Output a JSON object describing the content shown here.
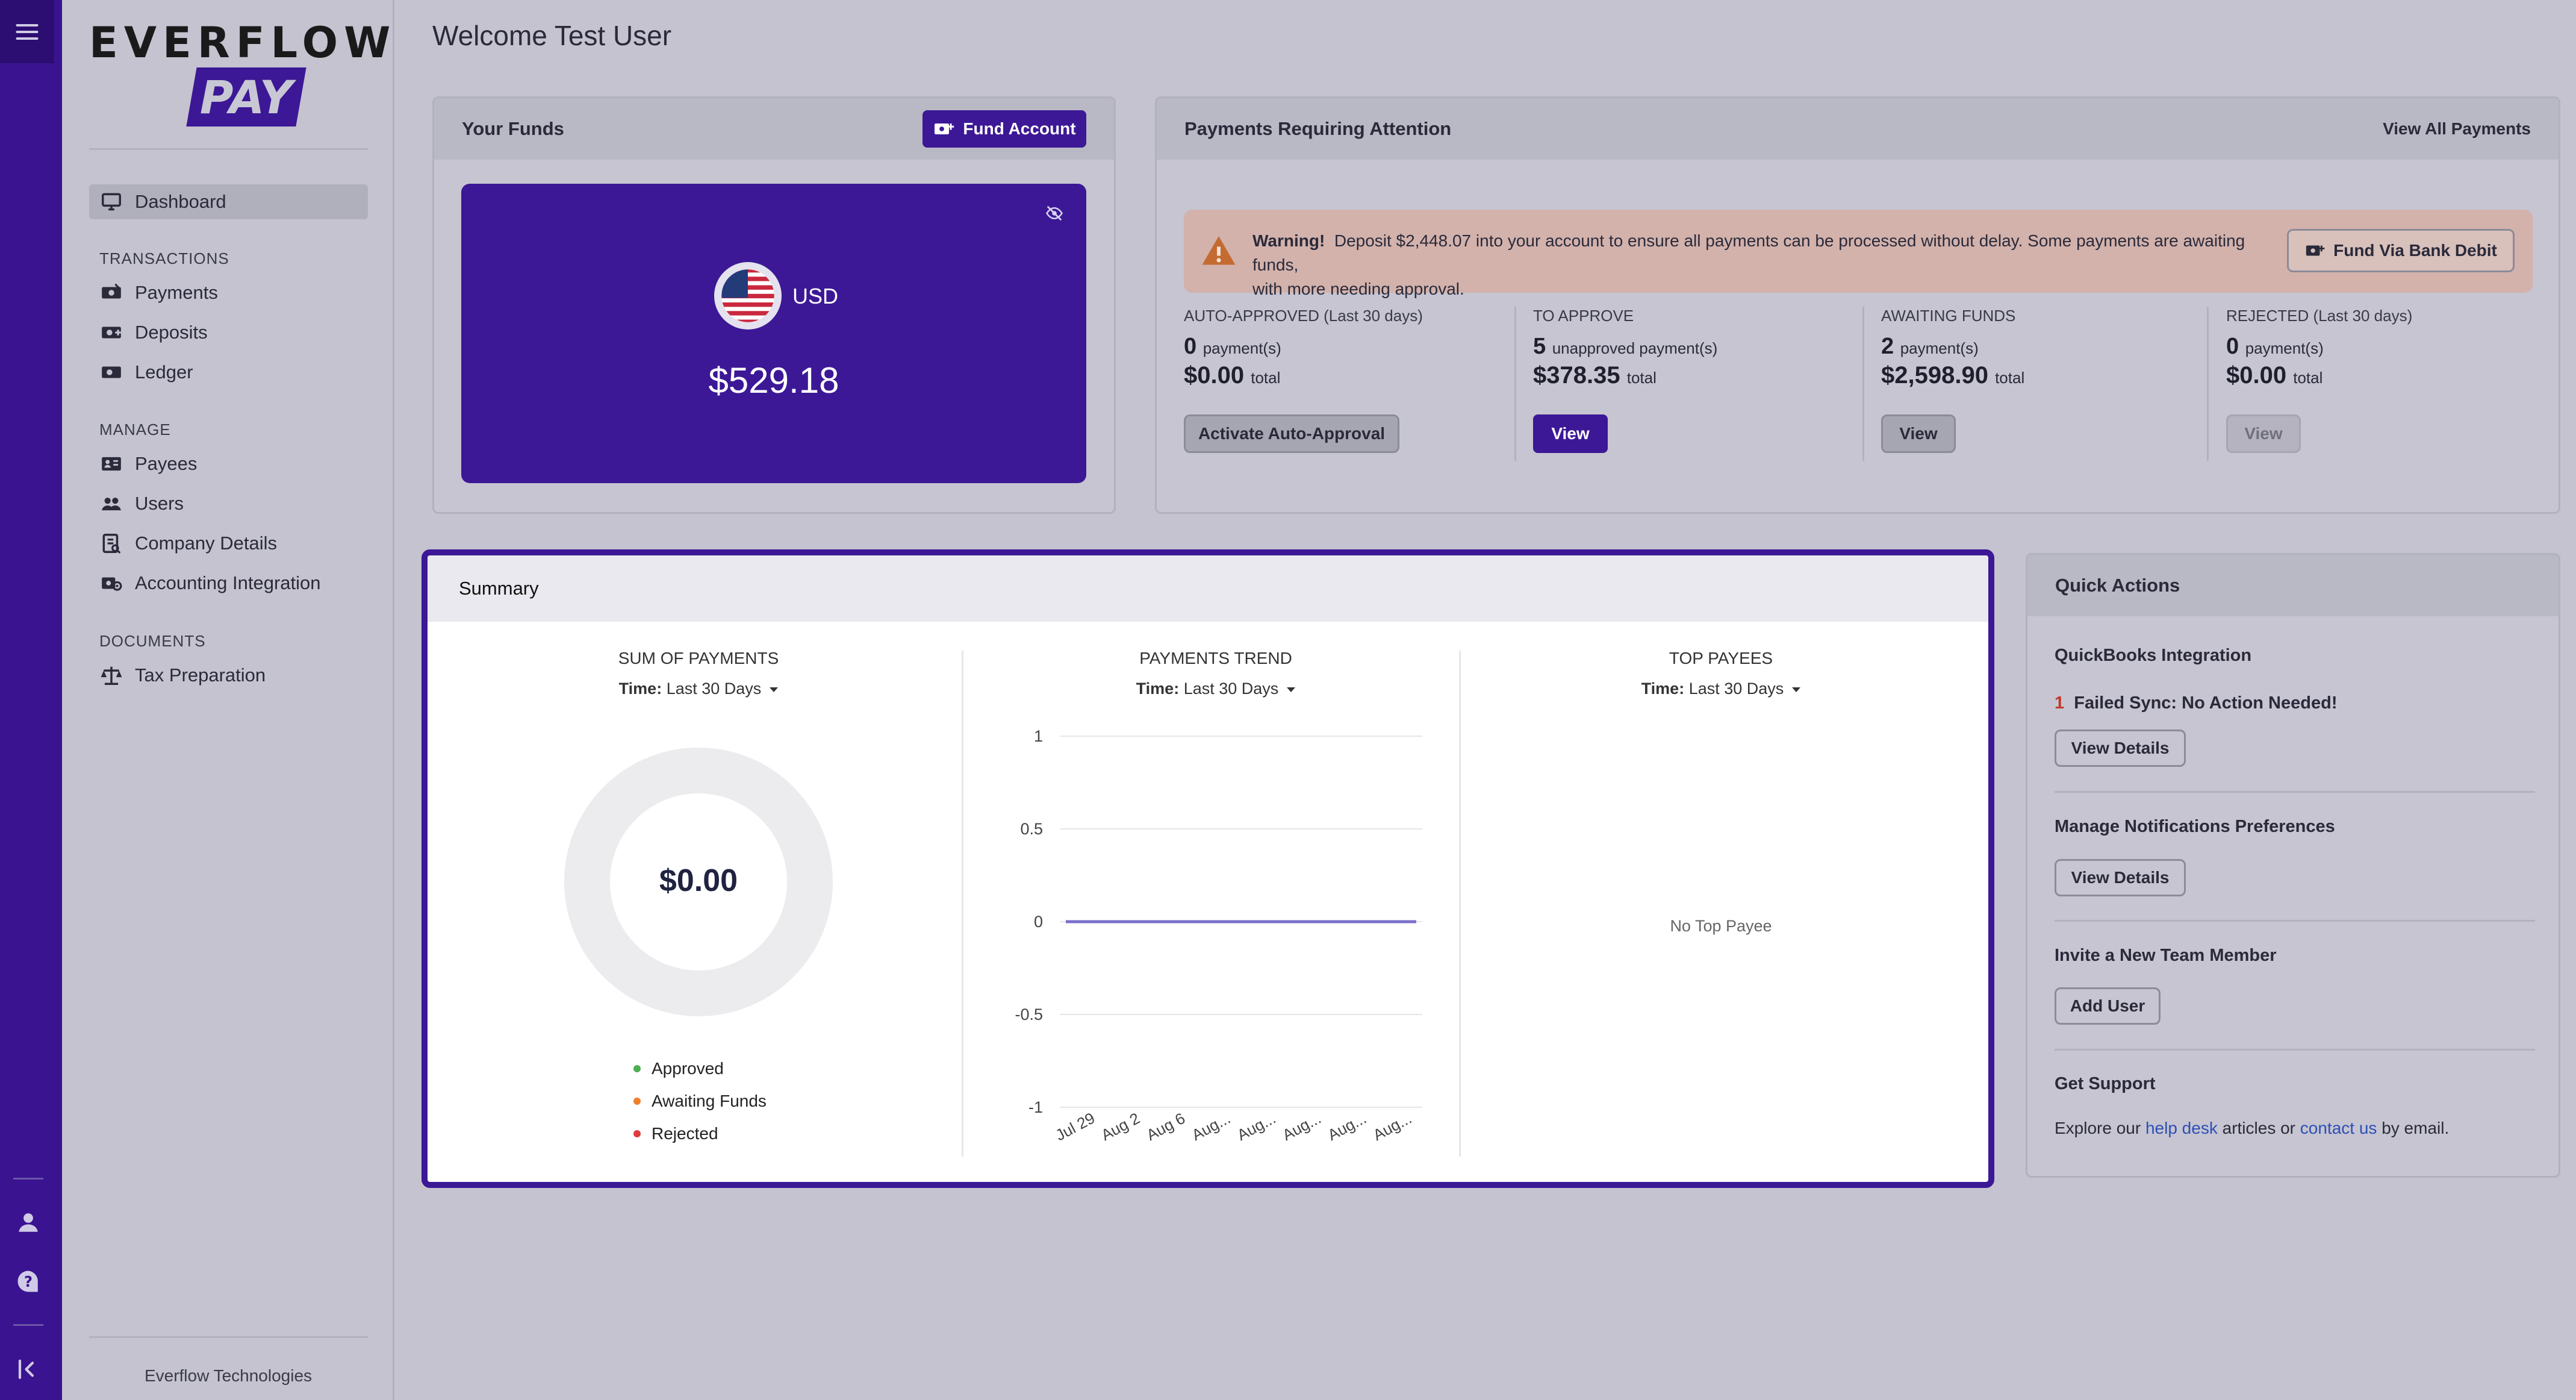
{
  "rail": {
    "menu_icon": "hamburger-icon",
    "icons": [
      "user-icon",
      "help-icon",
      "collapse-icon"
    ]
  },
  "sidebar": {
    "logo_word": "EVERFLOW",
    "logo_pay": "PAY",
    "dashboard": "Dashboard",
    "groups": {
      "transactions": "TRANSACTIONS",
      "manage": "MANAGE",
      "documents": "DOCUMENTS"
    },
    "items": {
      "payments": "Payments",
      "deposits": "Deposits",
      "ledger": "Ledger",
      "payees": "Payees",
      "users": "Users",
      "company_details": "Company Details",
      "accounting_integration": "Accounting Integration",
      "tax_preparation": "Tax Preparation"
    },
    "footer": "Everflow Technologies"
  },
  "header": {
    "title": "Welcome Test User"
  },
  "funds": {
    "title": "Your Funds",
    "fund_button": "Fund Account",
    "currency": "USD",
    "balance": "$529.18"
  },
  "attention": {
    "title": "Payments Requiring Attention",
    "view_all": "View All Payments",
    "warning_label": "Warning!",
    "warning_text_1": "Deposit $2,448.07 into your account to ensure all payments can be processed without delay. Some payments are awaiting funds,",
    "warning_text_2": "with more needing approval.",
    "bank_button": "Fund Via Bank Debit",
    "stats": [
      {
        "label": "AUTO-APPROVED",
        "sublabel": "(Last 30 days)",
        "count": "0",
        "count_unit": "payment(s)",
        "total": "$0.00",
        "total_unit": "total",
        "button": "Activate Auto-Approval"
      },
      {
        "label": "TO APPROVE",
        "sublabel": "",
        "count": "5",
        "count_unit": "unapproved payment(s)",
        "total": "$378.35",
        "total_unit": "total",
        "button": "View"
      },
      {
        "label": "AWAITING FUNDS",
        "sublabel": "",
        "count": "2",
        "count_unit": "payment(s)",
        "total": "$2,598.90",
        "total_unit": "total",
        "button": "View"
      },
      {
        "label": "REJECTED",
        "sublabel": "(Last 30 days)",
        "count": "0",
        "count_unit": "payment(s)",
        "total": "$0.00",
        "total_unit": "total",
        "button": "View"
      }
    ]
  },
  "summary": {
    "title": "Summary",
    "time_label": "Time:",
    "time_value": "Last 30 Days",
    "sum": {
      "title": "SUM OF PAYMENTS",
      "center_value": "$0.00",
      "legend": [
        {
          "name": "Approved",
          "color": "#4caf50"
        },
        {
          "name": "Awaiting Funds",
          "color": "#f07f2d"
        },
        {
          "name": "Rejected",
          "color": "#e23b3b"
        }
      ]
    },
    "trend": {
      "title": "PAYMENTS TREND"
    },
    "top": {
      "title": "TOP PAYEES",
      "empty": "No Top Payee"
    }
  },
  "chart_data": {
    "type": "line",
    "x": [
      "Jul 29",
      "Aug 2",
      "Aug 6",
      "Aug...",
      "Aug...",
      "Aug...",
      "Aug...",
      "Aug..."
    ],
    "series": [
      {
        "values": [
          0,
          0,
          0,
          0,
          0,
          0,
          0,
          0
        ]
      }
    ],
    "yticks": [
      "1",
      "0.5",
      "0",
      "-0.5",
      "-1"
    ],
    "ylim": [
      -1,
      1
    ],
    "grid": true,
    "title": "",
    "line_color": "#7b70c9"
  },
  "quick_actions": {
    "title": "Quick Actions",
    "quickbooks_title": "QuickBooks Integration",
    "failed_count": "1",
    "failed_text": "Failed Sync: No Action Needed!",
    "view_details": "View Details",
    "notifications_title": "Manage Notifications Preferences",
    "invite_title": "Invite a New Team Member",
    "add_user": "Add User",
    "support_title": "Get Support",
    "support_pre": "Explore our",
    "help_desk": "help desk",
    "support_mid": "articles or",
    "contact_us": "contact us",
    "support_post": "by email."
  }
}
